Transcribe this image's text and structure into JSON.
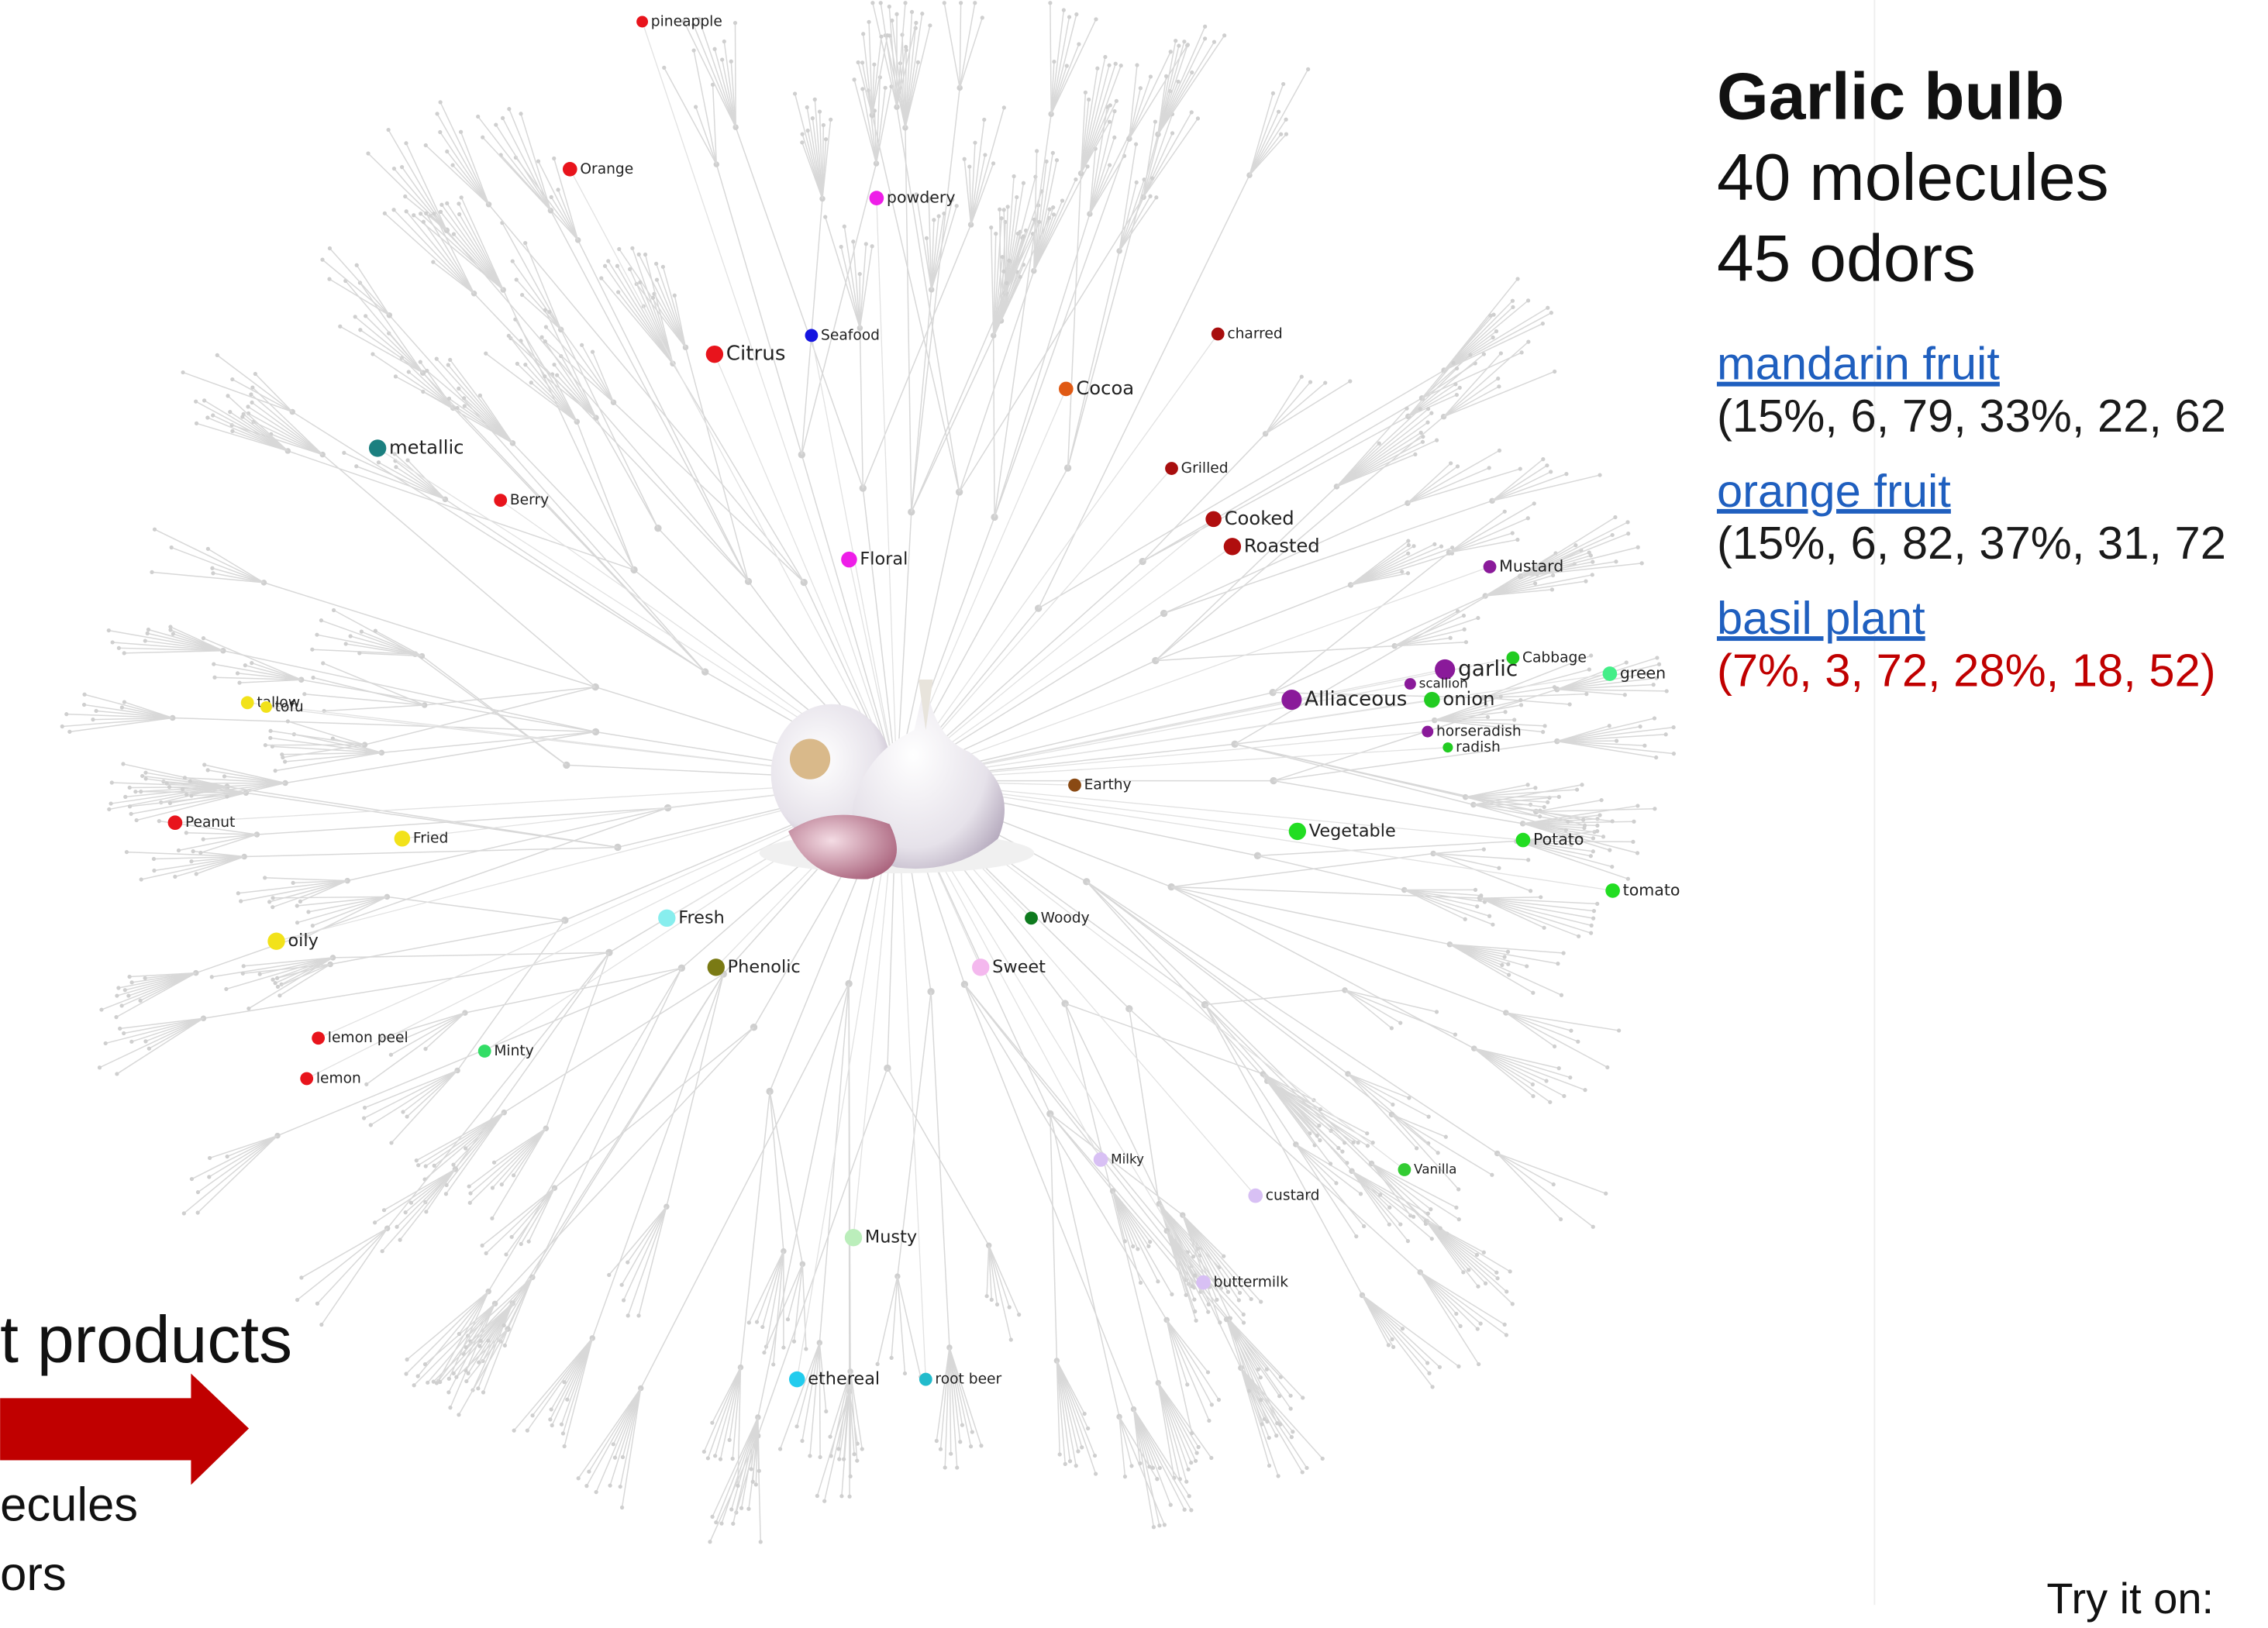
{
  "panel": {
    "title": "Garlic bulb",
    "molecules": "40 molecules",
    "odors": "45 odors",
    "matches": [
      {
        "name": "mandarin fruit",
        "stats": "(15%, 6, 79, 33%, 22, 62",
        "color": "#1a1a1a"
      },
      {
        "name": "orange fruit",
        "stats": "(15%, 6, 82, 37%, 31, 72",
        "color": "#1a1a1a"
      },
      {
        "name": "basil plant",
        "stats": "(7%, 3, 72, 28%, 18, 52)",
        "color": "#c00000"
      }
    ]
  },
  "graph": {
    "nodes": [
      {
        "label": "pineapple",
        "color": "#e8141c"
      },
      {
        "label": "Orange",
        "color": "#e8141c"
      },
      {
        "label": "powdery",
        "color": "#ee1ee8"
      },
      {
        "label": "Citrus",
        "color": "#e8141c"
      },
      {
        "label": "Seafood",
        "color": "#1414e0"
      },
      {
        "label": "charred",
        "color": "#a80e0e"
      },
      {
        "label": "Cocoa",
        "color": "#e05a14"
      },
      {
        "label": "metallic",
        "color": "#1b8080"
      },
      {
        "label": "Berry",
        "color": "#e8141c"
      },
      {
        "label": "Grilled",
        "color": "#a80e0e"
      },
      {
        "label": "Cooked",
        "color": "#b00e0e"
      },
      {
        "label": "Roasted",
        "color": "#b00e0e"
      },
      {
        "label": "Floral",
        "color": "#ee1ee8"
      },
      {
        "label": "Mustard",
        "color": "#8a1a9a"
      },
      {
        "label": "Cabbage",
        "color": "#22cc22"
      },
      {
        "label": "garlic",
        "color": "#8a1a9a"
      },
      {
        "label": "scallion",
        "color": "#8a1a9a"
      },
      {
        "label": "green",
        "color": "#44ee88"
      },
      {
        "label": "Alliaceous",
        "color": "#8a1a9a"
      },
      {
        "label": "onion",
        "color": "#22cc22"
      },
      {
        "label": "horseradish",
        "color": "#8a1a9a"
      },
      {
        "label": "radish",
        "color": "#22cc22"
      },
      {
        "label": "tallow",
        "color": "#f2e21a"
      },
      {
        "label": "tofu",
        "color": "#f2e21a"
      },
      {
        "label": "Earthy",
        "color": "#8a4a14"
      },
      {
        "label": "Peanut",
        "color": "#e8141c"
      },
      {
        "label": "Fried",
        "color": "#f2e21a"
      },
      {
        "label": "Vegetable",
        "color": "#22dd22"
      },
      {
        "label": "Potato",
        "color": "#22dd22"
      },
      {
        "label": "tomato",
        "color": "#22dd22"
      },
      {
        "label": "Fresh",
        "color": "#88eeee"
      },
      {
        "label": "Woody",
        "color": "#0e7a1e"
      },
      {
        "label": "Phenolic",
        "color": "#7a7a14"
      },
      {
        "label": "Sweet",
        "color": "#f4b8ee"
      },
      {
        "label": "oily",
        "color": "#f2e21a"
      },
      {
        "label": "lemon peel",
        "color": "#e8141c"
      },
      {
        "label": "Minty",
        "color": "#33dd66"
      },
      {
        "label": "lemon",
        "color": "#e8141c"
      },
      {
        "label": "Milky",
        "color": "#d8c0f4"
      },
      {
        "label": "Vanilla",
        "color": "#33cc33"
      },
      {
        "label": "custard",
        "color": "#d8c0f4"
      },
      {
        "label": "Musty",
        "color": "#bbeebb"
      },
      {
        "label": "buttermilk",
        "color": "#d8c0f4"
      },
      {
        "label": "ethereal",
        "color": "#22ccee"
      },
      {
        "label": "root beer",
        "color": "#22bbcc"
      }
    ]
  },
  "slide": {
    "heading": "t products",
    "line1": "ecules",
    "line2": "ors",
    "footer": "Try it on:"
  }
}
